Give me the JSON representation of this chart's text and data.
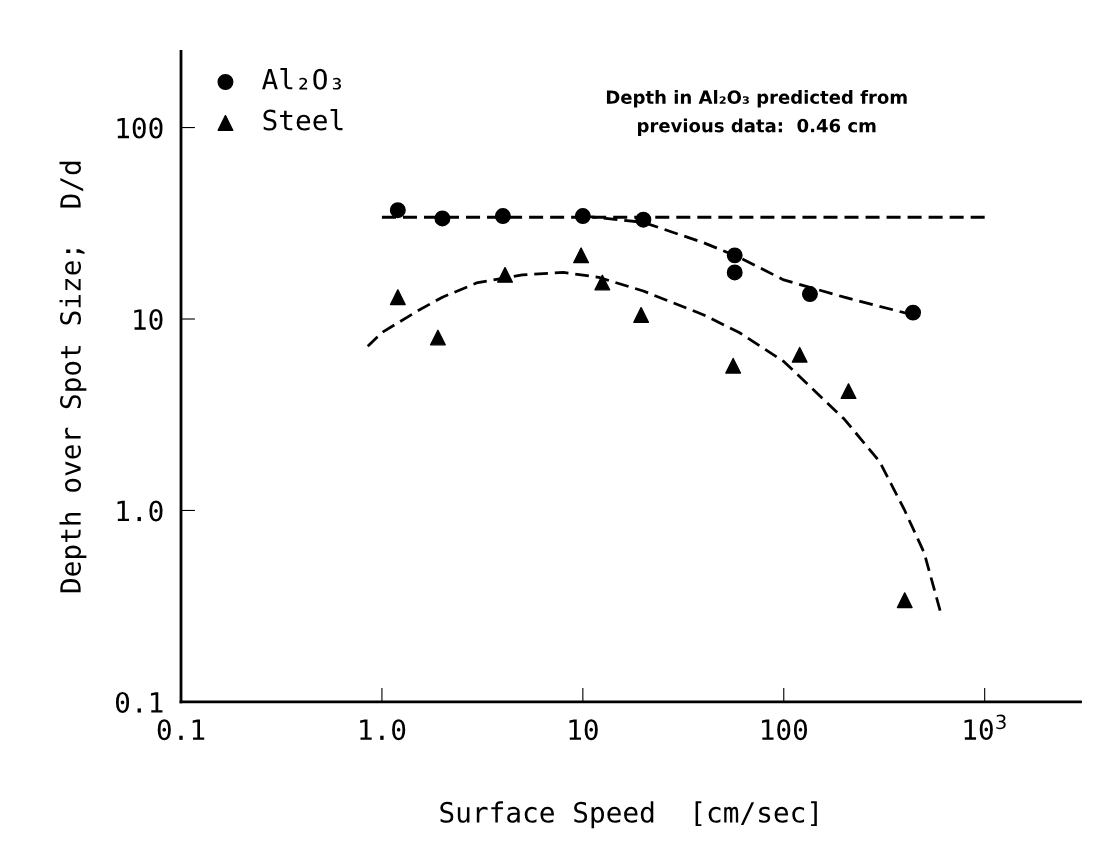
{
  "chart_data": {
    "type": "scatter",
    "xlabel": "Surface Speed  [cm/sec]",
    "ylabel": "Depth over Spot Size;  D/d",
    "log": "xy",
    "xlim": [
      0.1,
      3000
    ],
    "ylim": [
      0.1,
      250
    ],
    "xticks": [
      0.1,
      {
        "value": 1,
        "label": "1.0"
      },
      10,
      100,
      {
        "value": 1000,
        "label": "10$^{3}$"
      }
    ],
    "yticks": [
      0.1,
      {
        "value": 1,
        "label": "1.0"
      },
      10,
      100
    ],
    "grid": false,
    "legend": "top left",
    "annotations": [
      "Depth in Al₂O₃ predicted from\nprevious data:  0.46 cm"
    ],
    "series": [
      {
        "name": "Al₂O₃",
        "marker": "circle",
        "color": "#000000",
        "x": [
          1.2,
          2,
          4,
          10,
          20,
          57,
          57,
          135,
          440
        ],
        "values": [
          37,
          33.5,
          34.5,
          34.5,
          33,
          21.5,
          17.5,
          13.5,
          10.8
        ]
      },
      {
        "name": "Steel",
        "marker": "triangle",
        "color": "#000000",
        "x": [
          1.2,
          1.9,
          4.1,
          9.8,
          12.5,
          19.5,
          56,
          120,
          210,
          400
        ],
        "values": [
          13,
          8,
          17,
          21.5,
          15.5,
          10.5,
          5.7,
          6.5,
          4.2,
          0.34
        ]
      },
      {
        "type": "line",
        "line_style": "dashed",
        "color": "#000000",
        "x": [
          1.0,
          1000
        ],
        "values": [
          34,
          34
        ]
      },
      {
        "type": "line",
        "line_style": "dashed",
        "color": "#000000",
        "x": [
          10,
          20,
          40,
          60,
          100,
          200,
          440
        ],
        "values": [
          34.5,
          32,
          25,
          21,
          16,
          13,
          10.5
        ]
      },
      {
        "type": "line",
        "line_style": "dashed",
        "color": "#000000",
        "x": [
          0.85,
          1,
          1.5,
          2,
          3,
          5,
          8,
          12,
          20,
          40,
          60,
          100,
          200,
          300,
          400,
          500,
          600
        ],
        "values": [
          7.2,
          8.5,
          11,
          13,
          15.5,
          17,
          17.5,
          16.5,
          14,
          10.5,
          8.5,
          6,
          3,
          1.8,
          1.0,
          0.6,
          0.3
        ]
      }
    ]
  }
}
